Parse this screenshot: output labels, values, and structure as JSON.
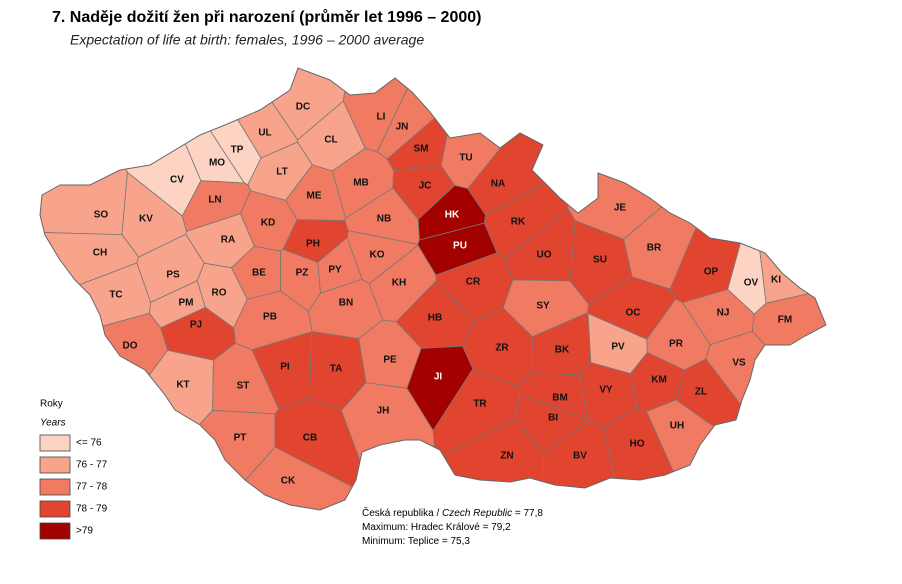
{
  "header": {
    "title": "7. Naděje dožití žen při narození (průměr let 1996 – 2000)",
    "subtitle": "Expectation of life at birth: females, 1996 – 2000 average"
  },
  "legend": {
    "title": "Roky",
    "subtitle": "Years",
    "classes": [
      {
        "label": "<= 76",
        "color": "#fdd3c3"
      },
      {
        "label": "76 - 77",
        "color": "#f8a48c"
      },
      {
        "label": "77 - 78",
        "color": "#f07b62"
      },
      {
        "label": "78 - 79",
        "color": "#e2452f"
      },
      {
        "label": ">79",
        "color": "#a30000"
      }
    ]
  },
  "notes": [
    [
      "Česká republika /",
      "Czech Republic",
      "= 77,8"
    ],
    [
      "Maximum: Hradec Králové = 79,2"
    ],
    [
      "Minimum: Teplice = 75,3"
    ]
  ],
  "districts": [
    {
      "label": "DC",
      "class": 1
    },
    {
      "label": "UL",
      "class": 1
    },
    {
      "label": "TP",
      "class": 0
    },
    {
      "label": "MO",
      "class": 0
    },
    {
      "label": "CL",
      "class": 1
    },
    {
      "label": "LI",
      "class": 2
    },
    {
      "label": "JN",
      "class": 2
    },
    {
      "label": "SM",
      "class": 3
    },
    {
      "label": "TU",
      "class": 2
    },
    {
      "label": "CV",
      "class": 0
    },
    {
      "label": "LT",
      "class": 1
    },
    {
      "label": "NA",
      "class": 3
    },
    {
      "label": "JC",
      "class": 3
    },
    {
      "label": "MB",
      "class": 2
    },
    {
      "label": "ME",
      "class": 2
    },
    {
      "label": "SO",
      "class": 1
    },
    {
      "label": "KV",
      "class": 1
    },
    {
      "label": "LN",
      "class": 2
    },
    {
      "label": "KD",
      "class": 2
    },
    {
      "label": "HK",
      "class": 4
    },
    {
      "label": "RK",
      "class": 3
    },
    {
      "label": "JE",
      "class": 2
    },
    {
      "label": "NB",
      "class": 2
    },
    {
      "label": "CH",
      "class": 1
    },
    {
      "label": "RA",
      "class": 1
    },
    {
      "label": "PH",
      "class": 3
    },
    {
      "label": "PU",
      "class": 4
    },
    {
      "label": "UO",
      "class": 3
    },
    {
      "label": "BR",
      "class": 2
    },
    {
      "label": "KO",
      "class": 2
    },
    {
      "label": "SU",
      "class": 3
    },
    {
      "label": "PS",
      "class": 1
    },
    {
      "label": "BE",
      "class": 2
    },
    {
      "label": "PZ",
      "class": 2
    },
    {
      "label": "PY",
      "class": 2
    },
    {
      "label": "KH",
      "class": 2
    },
    {
      "label": "CR",
      "class": 3
    },
    {
      "label": "OP",
      "class": 3
    },
    {
      "label": "OV",
      "class": 0
    },
    {
      "label": "KI",
      "class": 1
    },
    {
      "label": "TC",
      "class": 1
    },
    {
      "label": "PM",
      "class": 1
    },
    {
      "label": "RO",
      "class": 1
    },
    {
      "label": "BN",
      "class": 2
    },
    {
      "label": "SY",
      "class": 2
    },
    {
      "label": "NJ",
      "class": 2
    },
    {
      "label": "PB",
      "class": 2
    },
    {
      "label": "OC",
      "class": 3
    },
    {
      "label": "FM",
      "class": 2
    },
    {
      "label": "PJ",
      "class": 3
    },
    {
      "label": "HB",
      "class": 3
    },
    {
      "label": "DO",
      "class": 2
    },
    {
      "label": "ZR",
      "class": 3
    },
    {
      "label": "BK",
      "class": 3
    },
    {
      "label": "PV",
      "class": 1
    },
    {
      "label": "PR",
      "class": 2
    },
    {
      "label": "PE",
      "class": 2
    },
    {
      "label": "VS",
      "class": 2
    },
    {
      "label": "PI",
      "class": 3
    },
    {
      "label": "TA",
      "class": 3
    },
    {
      "label": "JI",
      "class": 4
    },
    {
      "label": "KM",
      "class": 3
    },
    {
      "label": "VY",
      "class": 3
    },
    {
      "label": "ZL",
      "class": 3
    },
    {
      "label": "KT",
      "class": 1
    },
    {
      "label": "ST",
      "class": 2
    },
    {
      "label": "BM",
      "class": 3
    },
    {
      "label": "TR",
      "class": 3
    },
    {
      "label": "JH",
      "class": 2
    },
    {
      "label": "BI",
      "class": 3
    },
    {
      "label": "UH",
      "class": 2
    },
    {
      "label": "PT",
      "class": 2
    },
    {
      "label": "CB",
      "class": 3
    },
    {
      "label": "HO",
      "class": 3
    },
    {
      "label": "ZN",
      "class": 3
    },
    {
      "label": "BV",
      "class": 3
    },
    {
      "label": "CK",
      "class": 2
    }
  ]
}
